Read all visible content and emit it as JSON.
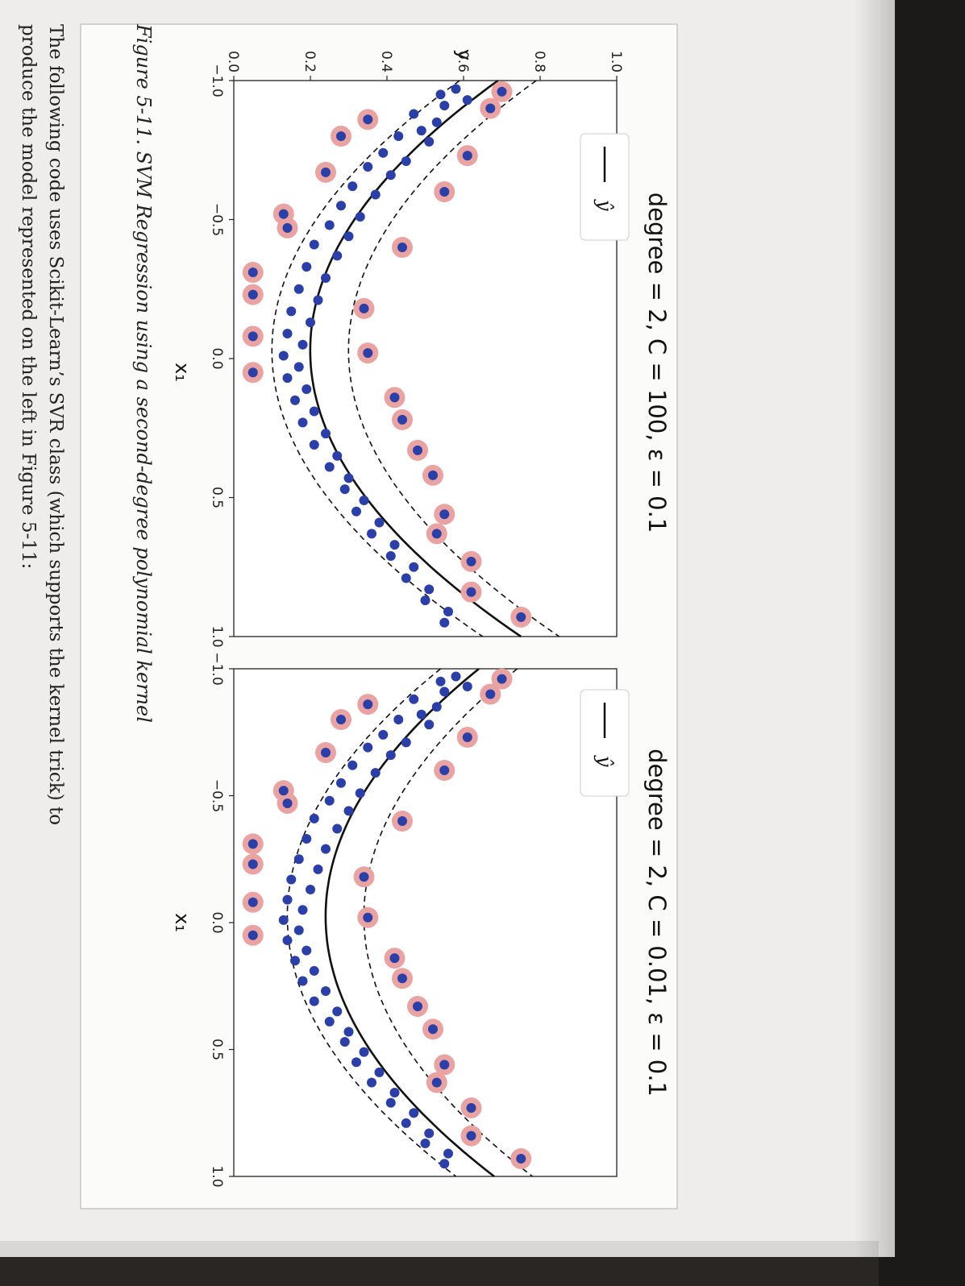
{
  "figure": {
    "caption": "Figure 5-11. SVM Regression using a second-degree polynomial kernel"
  },
  "text": {
    "line1": "The following code uses Scikit-Learn’s SVR class (which supports the kernel trick) to",
    "line2": "produce the model represented on the left in Figure 5-11:"
  },
  "colors": {
    "point": "#2b3fa6",
    "support_vector_halo": "#eaa3a3",
    "prediction_line": "#111111",
    "margin_line": "#111111",
    "page": "#efedec"
  },
  "chart_data": [
    {
      "type": "scatter",
      "title": "degree = 2, C = 100, ε = 0.1",
      "xlabel": "x₁",
      "ylabel": "y",
      "xlim": [
        -1.0,
        1.0
      ],
      "ylim": [
        0.0,
        1.0
      ],
      "xticks": [
        "−1.0",
        "−0.5",
        "0.0",
        "0.5",
        "1.0"
      ],
      "yticks": [
        "0.0",
        "0.2",
        "0.4",
        "0.6",
        "0.8",
        "1.0"
      ],
      "legend": {
        "label": "ŷ",
        "placement": "top-left"
      },
      "model": {
        "curve": [
          0.2,
          0.03,
          0.52
        ],
        "epsilon": 0.1
      },
      "points": [
        [
          -0.97,
          0.58
        ],
        [
          -0.95,
          0.54
        ],
        [
          -0.93,
          0.61
        ],
        [
          -0.91,
          0.55
        ],
        [
          -0.88,
          0.47
        ],
        [
          -0.85,
          0.53
        ],
        [
          -0.82,
          0.49
        ],
        [
          -0.8,
          0.43
        ],
        [
          -0.78,
          0.51
        ],
        [
          -0.74,
          0.39
        ],
        [
          -0.71,
          0.45
        ],
        [
          -0.69,
          0.35
        ],
        [
          -0.66,
          0.41
        ],
        [
          -0.62,
          0.31
        ],
        [
          -0.59,
          0.37
        ],
        [
          -0.55,
          0.28
        ],
        [
          -0.51,
          0.33
        ],
        [
          -0.48,
          0.25
        ],
        [
          -0.44,
          0.3
        ],
        [
          -0.41,
          0.21
        ],
        [
          -0.37,
          0.27
        ],
        [
          -0.33,
          0.19
        ],
        [
          -0.29,
          0.24
        ],
        [
          -0.25,
          0.17
        ],
        [
          -0.21,
          0.22
        ],
        [
          -0.17,
          0.15
        ],
        [
          -0.13,
          0.2
        ],
        [
          -0.09,
          0.14
        ],
        [
          -0.05,
          0.18
        ],
        [
          -0.01,
          0.13
        ],
        [
          0.03,
          0.17
        ],
        [
          0.07,
          0.14
        ],
        [
          0.11,
          0.19
        ],
        [
          0.15,
          0.16
        ],
        [
          0.19,
          0.21
        ],
        [
          0.23,
          0.18
        ],
        [
          0.27,
          0.24
        ],
        [
          0.31,
          0.21
        ],
        [
          0.35,
          0.27
        ],
        [
          0.39,
          0.25
        ],
        [
          0.43,
          0.3
        ],
        [
          0.47,
          0.29
        ],
        [
          0.51,
          0.34
        ],
        [
          0.55,
          0.32
        ],
        [
          0.59,
          0.38
        ],
        [
          0.63,
          0.36
        ],
        [
          0.67,
          0.42
        ],
        [
          0.71,
          0.41
        ],
        [
          0.75,
          0.47
        ],
        [
          0.79,
          0.45
        ],
        [
          0.83,
          0.51
        ],
        [
          0.87,
          0.5
        ],
        [
          0.91,
          0.56
        ],
        [
          0.95,
          0.55
        ]
      ],
      "support_vectors": [
        [
          -0.96,
          0.7
        ],
        [
          -0.9,
          0.67
        ],
        [
          -0.86,
          0.35
        ],
        [
          -0.8,
          0.28
        ],
        [
          -0.73,
          0.61
        ],
        [
          -0.67,
          0.24
        ],
        [
          -0.6,
          0.55
        ],
        [
          -0.52,
          0.13
        ],
        [
          -0.47,
          0.14
        ],
        [
          -0.4,
          0.44
        ],
        [
          -0.31,
          0.05
        ],
        [
          -0.23,
          0.05
        ],
        [
          -0.18,
          0.34
        ],
        [
          -0.08,
          0.05
        ],
        [
          -0.02,
          0.35
        ],
        [
          0.05,
          0.05
        ],
        [
          0.14,
          0.42
        ],
        [
          0.22,
          0.44
        ],
        [
          0.33,
          0.48
        ],
        [
          0.42,
          0.52
        ],
        [
          0.56,
          0.55
        ],
        [
          0.63,
          0.53
        ],
        [
          0.73,
          0.62
        ],
        [
          0.84,
          0.62
        ],
        [
          0.93,
          0.75
        ]
      ]
    },
    {
      "type": "scatter",
      "title": "degree = 2, C = 0.01, ε = 0.1",
      "xlabel": "x₁",
      "xlim": [
        -1.0,
        1.0
      ],
      "ylim": [
        0.0,
        1.0
      ],
      "xticks": [
        "−1.0",
        "−0.5",
        "0.0",
        "0.5",
        "1.0"
      ],
      "legend": {
        "label": "ŷ",
        "placement": "top-left"
      },
      "model": {
        "curve": [
          0.24,
          0.02,
          0.42
        ],
        "epsilon": 0.1
      },
      "points": [
        [
          -0.97,
          0.58
        ],
        [
          -0.95,
          0.54
        ],
        [
          -0.93,
          0.61
        ],
        [
          -0.91,
          0.55
        ],
        [
          -0.88,
          0.47
        ],
        [
          -0.85,
          0.53
        ],
        [
          -0.82,
          0.49
        ],
        [
          -0.8,
          0.43
        ],
        [
          -0.78,
          0.51
        ],
        [
          -0.74,
          0.39
        ],
        [
          -0.71,
          0.45
        ],
        [
          -0.69,
          0.35
        ],
        [
          -0.66,
          0.41
        ],
        [
          -0.62,
          0.31
        ],
        [
          -0.59,
          0.37
        ],
        [
          -0.55,
          0.28
        ],
        [
          -0.51,
          0.33
        ],
        [
          -0.48,
          0.25
        ],
        [
          -0.44,
          0.3
        ],
        [
          -0.41,
          0.21
        ],
        [
          -0.37,
          0.27
        ],
        [
          -0.33,
          0.19
        ],
        [
          -0.29,
          0.24
        ],
        [
          -0.25,
          0.17
        ],
        [
          -0.21,
          0.22
        ],
        [
          -0.17,
          0.15
        ],
        [
          -0.13,
          0.2
        ],
        [
          -0.09,
          0.14
        ],
        [
          -0.05,
          0.18
        ],
        [
          -0.01,
          0.13
        ],
        [
          0.03,
          0.17
        ],
        [
          0.07,
          0.14
        ],
        [
          0.11,
          0.19
        ],
        [
          0.15,
          0.16
        ],
        [
          0.19,
          0.21
        ],
        [
          0.23,
          0.18
        ],
        [
          0.27,
          0.24
        ],
        [
          0.31,
          0.21
        ],
        [
          0.35,
          0.27
        ],
        [
          0.39,
          0.25
        ],
        [
          0.43,
          0.3
        ],
        [
          0.47,
          0.29
        ],
        [
          0.51,
          0.34
        ],
        [
          0.55,
          0.32
        ],
        [
          0.59,
          0.38
        ],
        [
          0.63,
          0.36
        ],
        [
          0.67,
          0.42
        ],
        [
          0.71,
          0.41
        ],
        [
          0.75,
          0.47
        ],
        [
          0.79,
          0.45
        ],
        [
          0.83,
          0.51
        ],
        [
          0.87,
          0.5
        ],
        [
          0.91,
          0.56
        ],
        [
          0.95,
          0.55
        ]
      ],
      "support_vectors": [
        [
          -0.96,
          0.7
        ],
        [
          -0.9,
          0.67
        ],
        [
          -0.86,
          0.35
        ],
        [
          -0.8,
          0.28
        ],
        [
          -0.73,
          0.61
        ],
        [
          -0.67,
          0.24
        ],
        [
          -0.6,
          0.55
        ],
        [
          -0.52,
          0.13
        ],
        [
          -0.47,
          0.14
        ],
        [
          -0.4,
          0.44
        ],
        [
          -0.31,
          0.05
        ],
        [
          -0.23,
          0.05
        ],
        [
          -0.18,
          0.34
        ],
        [
          -0.08,
          0.05
        ],
        [
          -0.02,
          0.35
        ],
        [
          0.05,
          0.05
        ],
        [
          0.14,
          0.42
        ],
        [
          0.22,
          0.44
        ],
        [
          0.33,
          0.48
        ],
        [
          0.42,
          0.52
        ],
        [
          0.56,
          0.55
        ],
        [
          0.63,
          0.53
        ],
        [
          0.73,
          0.62
        ],
        [
          0.84,
          0.62
        ],
        [
          0.93,
          0.75
        ]
      ]
    }
  ]
}
